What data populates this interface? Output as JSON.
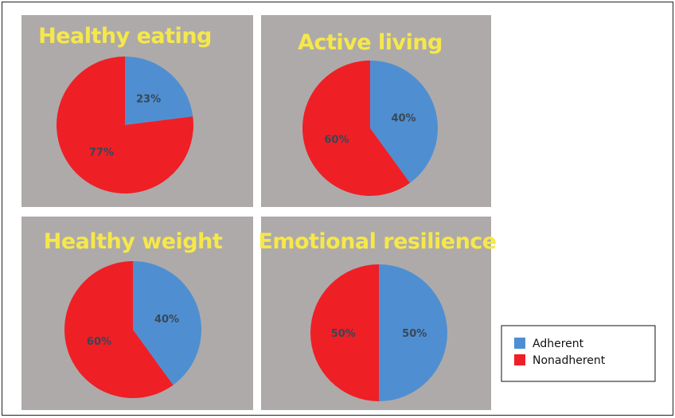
{
  "colors": {
    "panel_bg": "#aeaaaa",
    "title": "#f6e84a",
    "adherent": "#4f8fd1",
    "nonadherent": "#ef1f26",
    "pct_text": "#3a4656"
  },
  "legend": {
    "entries": [
      {
        "label": "Adherent",
        "color": "#4f8fd1"
      },
      {
        "label": "Nonadherent",
        "color": "#ef1f26"
      }
    ]
  },
  "chart_data": [
    {
      "type": "pie",
      "title": "Healthy eating",
      "slices": [
        {
          "name": "Adherent",
          "value": 23,
          "label": "23%"
        },
        {
          "name": "Nonadherent",
          "value": 77,
          "label": "77%"
        }
      ]
    },
    {
      "type": "pie",
      "title": "Active living",
      "slices": [
        {
          "name": "Adherent",
          "value": 40,
          "label": "40%"
        },
        {
          "name": "Nonadherent",
          "value": 60,
          "label": "60%"
        }
      ]
    },
    {
      "type": "pie",
      "title": "Healthy weight",
      "slices": [
        {
          "name": "Adherent",
          "value": 40,
          "label": "40%"
        },
        {
          "name": "Nonadherent",
          "value": 60,
          "label": "60%"
        }
      ]
    },
    {
      "type": "pie",
      "title": "Emotional resilience",
      "slices": [
        {
          "name": "Adherent",
          "value": 50,
          "label": "50%"
        },
        {
          "name": "Nonadherent",
          "value": 50,
          "label": "50%"
        }
      ]
    }
  ]
}
